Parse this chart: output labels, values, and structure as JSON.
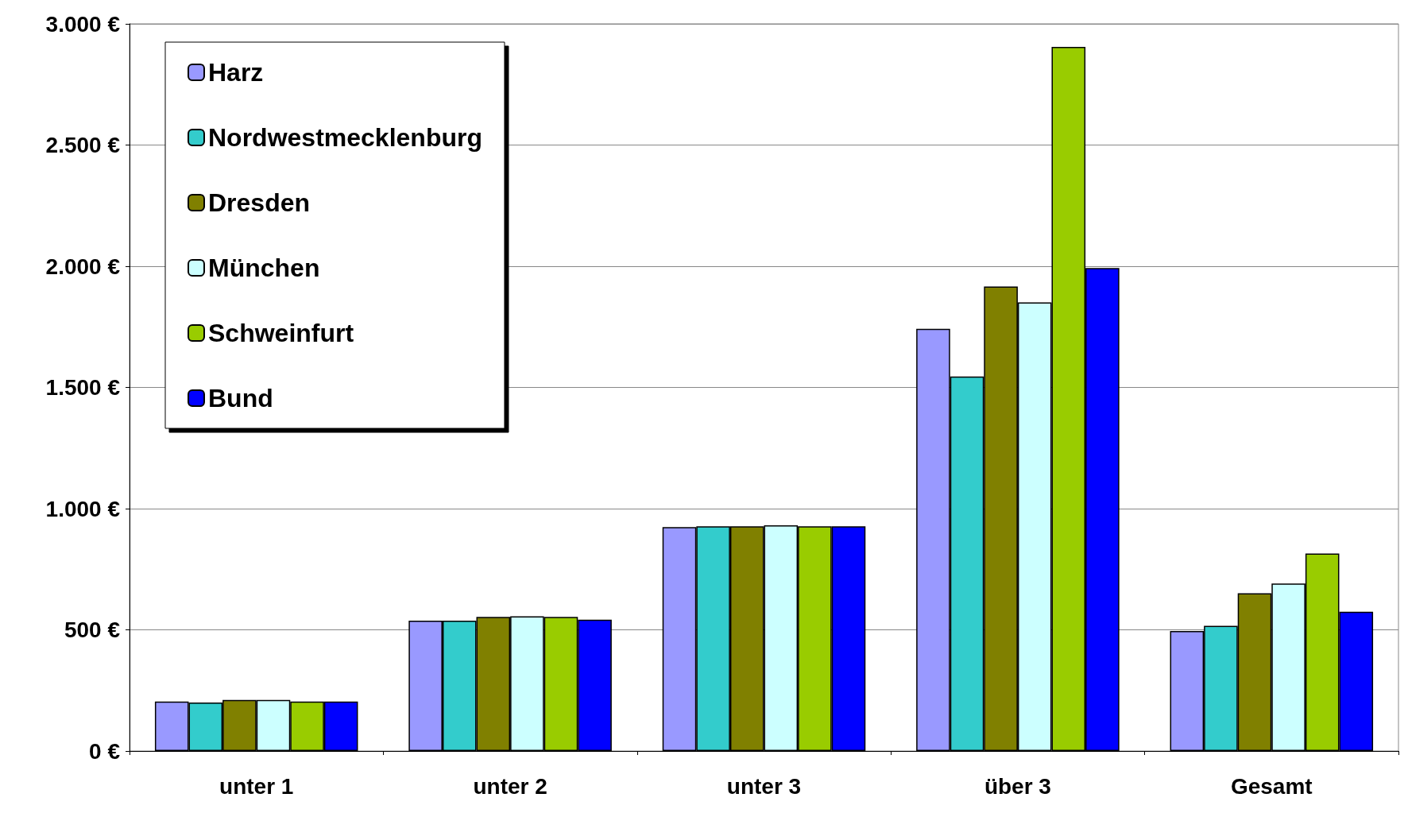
{
  "chart_data": {
    "type": "bar",
    "categories": [
      "unter 1",
      "unter 2",
      "unter 3",
      "über 3",
      "Gesamt"
    ],
    "series": [
      {
        "name": "Harz",
        "color": "#9999ff",
        "values": [
          204,
          538,
          924,
          1742,
          495
        ]
      },
      {
        "name": "Nordwestmecklenburg",
        "color": "#33cccc",
        "values": [
          200,
          538,
          927,
          1545,
          516
        ]
      },
      {
        "name": "Dresden",
        "color": "#808000",
        "values": [
          211,
          553,
          927,
          1916,
          651
        ]
      },
      {
        "name": "München",
        "color": "#ccffff",
        "values": [
          211,
          556,
          931,
          1851,
          691
        ]
      },
      {
        "name": "Schweinfurt",
        "color": "#99cc00",
        "values": [
          204,
          553,
          927,
          2905,
          815
        ]
      },
      {
        "name": "Bund",
        "color": "#0000ff",
        "values": [
          204,
          542,
          927,
          1993,
          575
        ]
      }
    ],
    "ylim": [
      0,
      3000
    ],
    "yticks": [
      {
        "value": 0,
        "label": "0 €"
      },
      {
        "value": 500,
        "label": "500 €"
      },
      {
        "value": 1000,
        "label": "1.000 €"
      },
      {
        "value": 1500,
        "label": "1.500 €"
      },
      {
        "value": 2000,
        "label": "2.000 €"
      },
      {
        "value": 2500,
        "label": "2.500 €"
      },
      {
        "value": 3000,
        "label": "3.000 €"
      }
    ],
    "grid": "y",
    "legend": "top left"
  }
}
